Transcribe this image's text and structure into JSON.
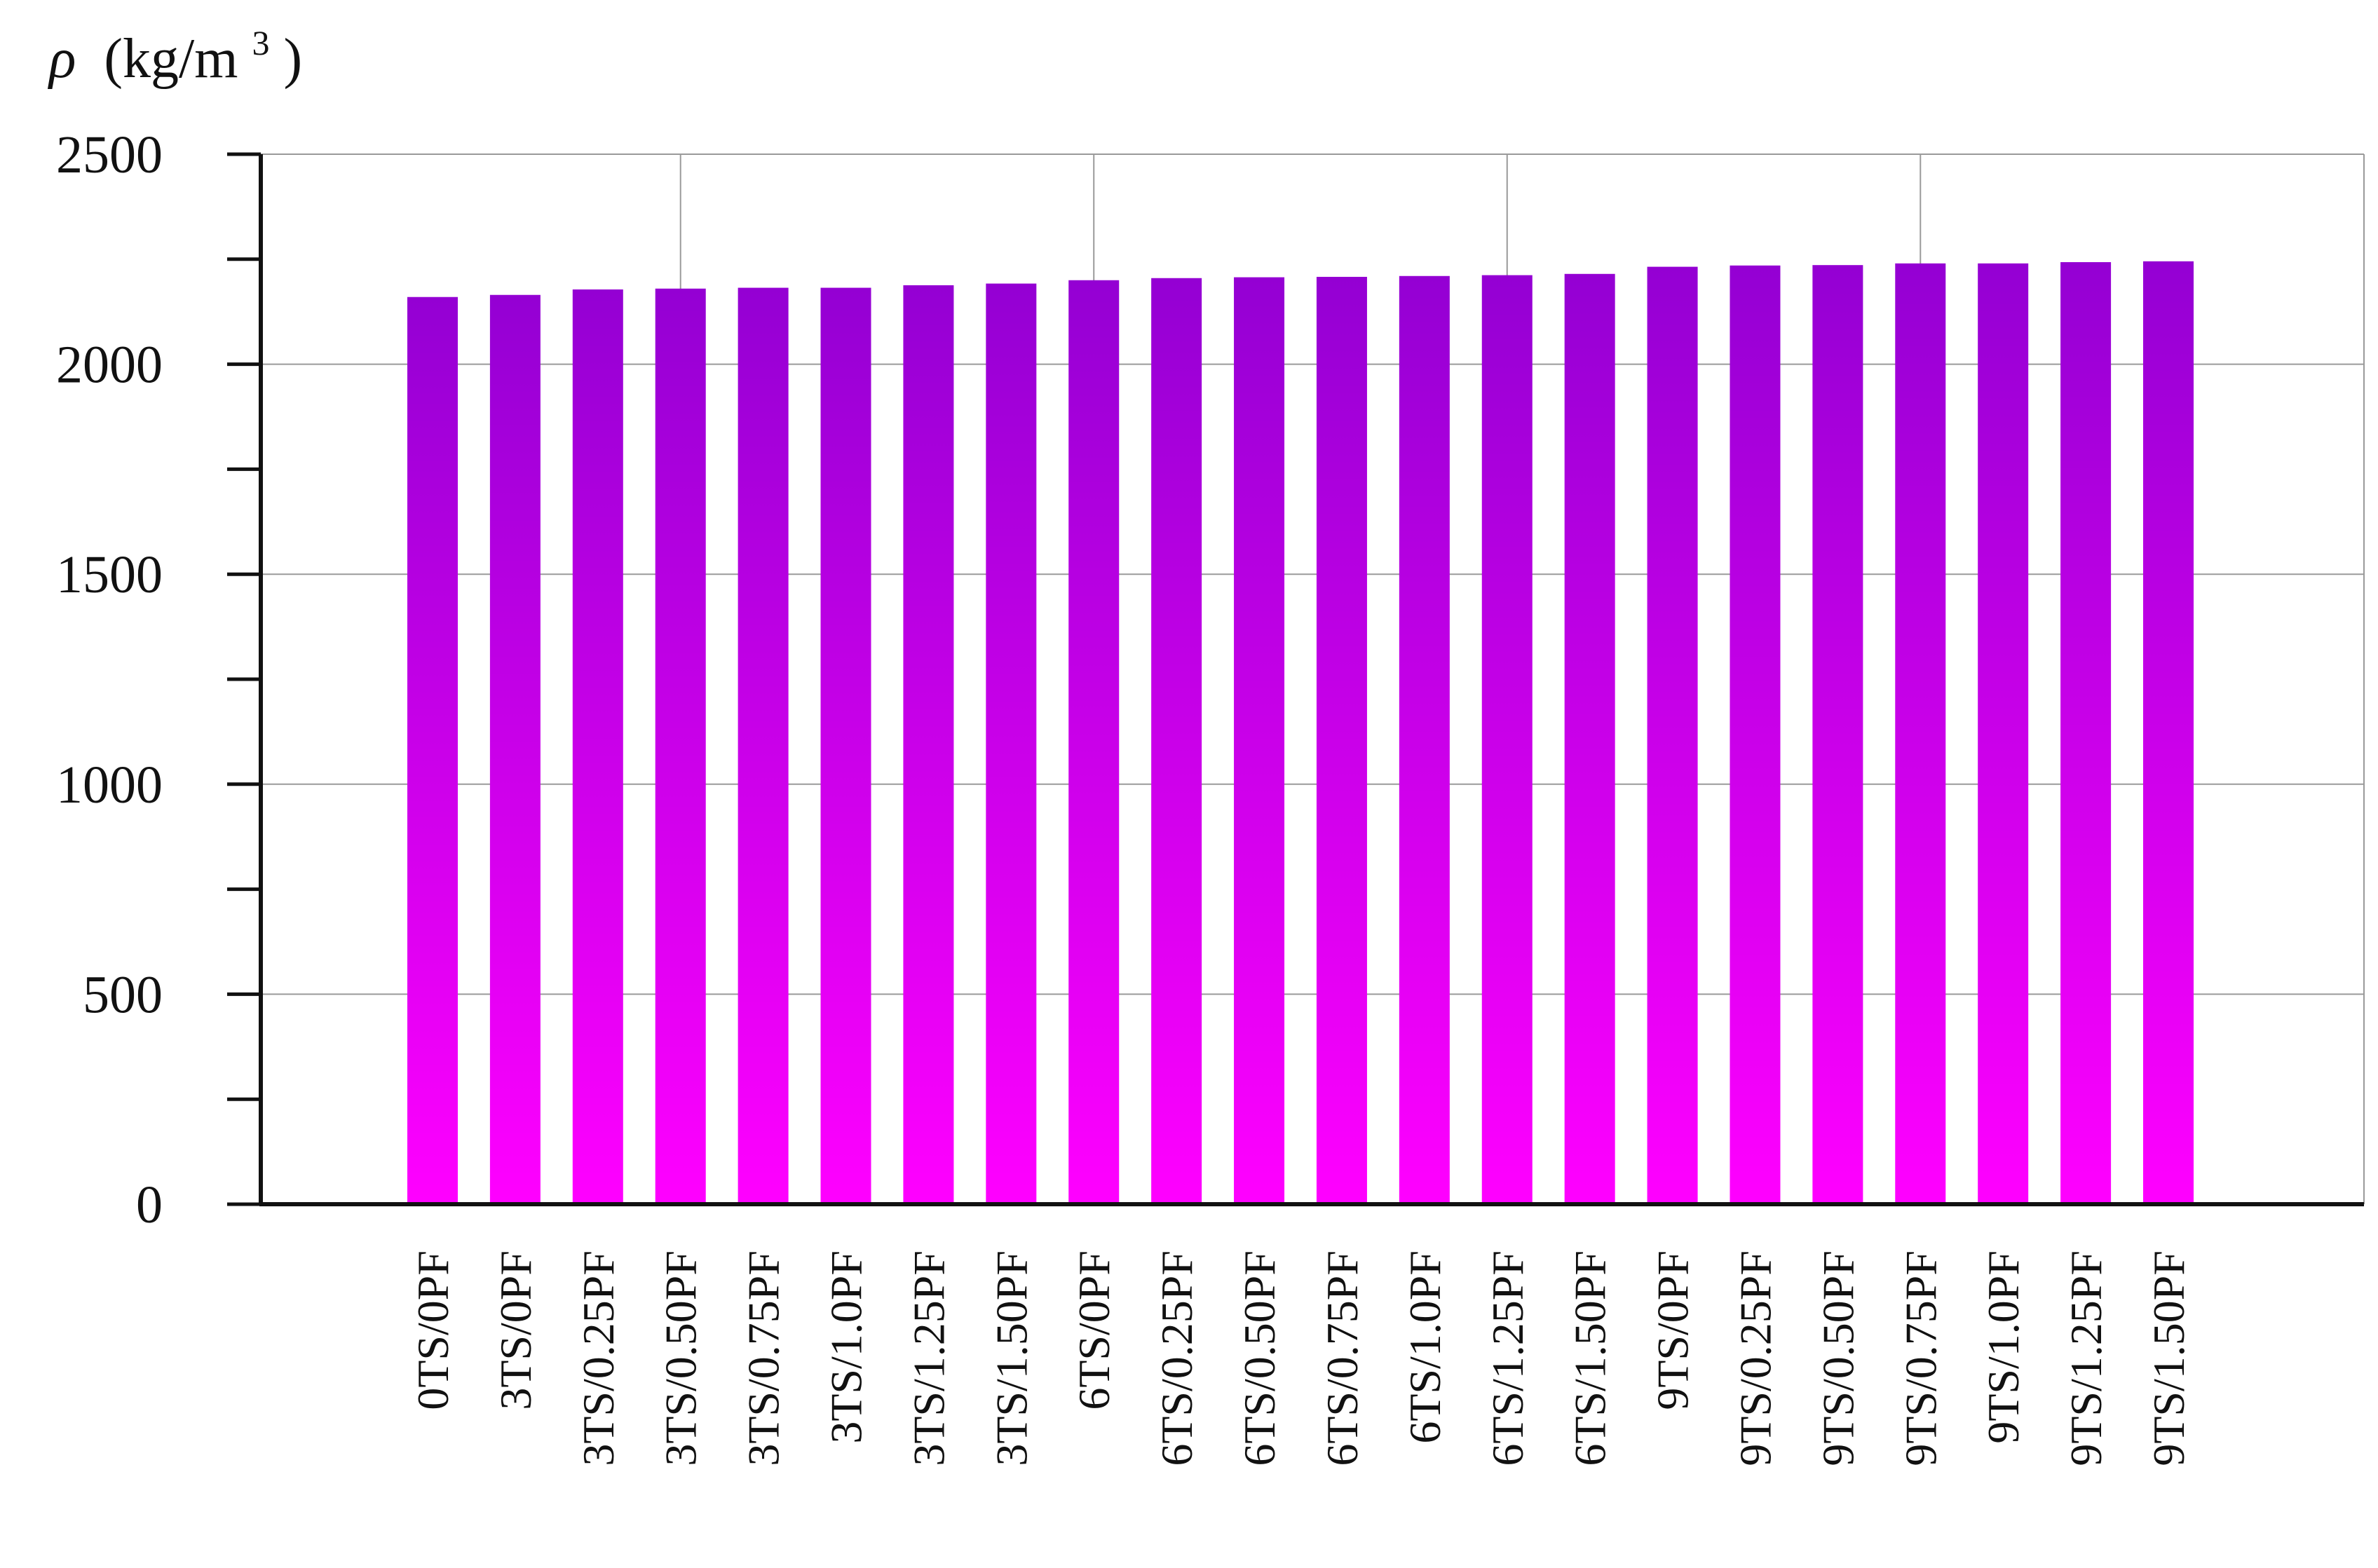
{
  "chart_data": {
    "type": "bar",
    "ylabel": "ρ (kg/m³)",
    "ylabel_symbol": "ρ",
    "ylabel_unit": "(kg/m",
    "ylabel_sup": "3",
    "ylabel_close": ")",
    "ylim": [
      0,
      2500
    ],
    "yticks": [
      0,
      500,
      1000,
      1500,
      2000,
      2500
    ],
    "ytick_labels": [
      "0",
      "500",
      "1000",
      "1500",
      "2000",
      "2500"
    ],
    "grid": true,
    "bar_color_top": "#9400d3",
    "bar_color_bottom": "#ff00ff",
    "categories": [
      "0TS/0PF",
      "3TS/0PF",
      "3TS/0.25PF",
      "3TS/0.50PF",
      "3TS/0.75PF",
      "3TS/1.0PF",
      "3TS/1.25PF",
      "3TS/1.50PF",
      "6TS/0PF",
      "6TS/0.25PF",
      "6TS/0.50PF",
      "6TS/0.75PF",
      "6TS/1.0PF",
      "6TS/1.25PF",
      "6TS/1.50PF",
      "9TS/0PF",
      "9TS/0.25PF",
      "9TS/0.50PF",
      "9TS/0.75PF",
      "9TS/1.0PF",
      "9TS/1.25PF",
      "9TS/1.50PF"
    ],
    "values": [
      2160,
      2165,
      2178,
      2180,
      2182,
      2182,
      2188,
      2192,
      2200,
      2205,
      2207,
      2208,
      2210,
      2212,
      2215,
      2232,
      2235,
      2236,
      2240,
      2240,
      2243,
      2245
    ]
  }
}
